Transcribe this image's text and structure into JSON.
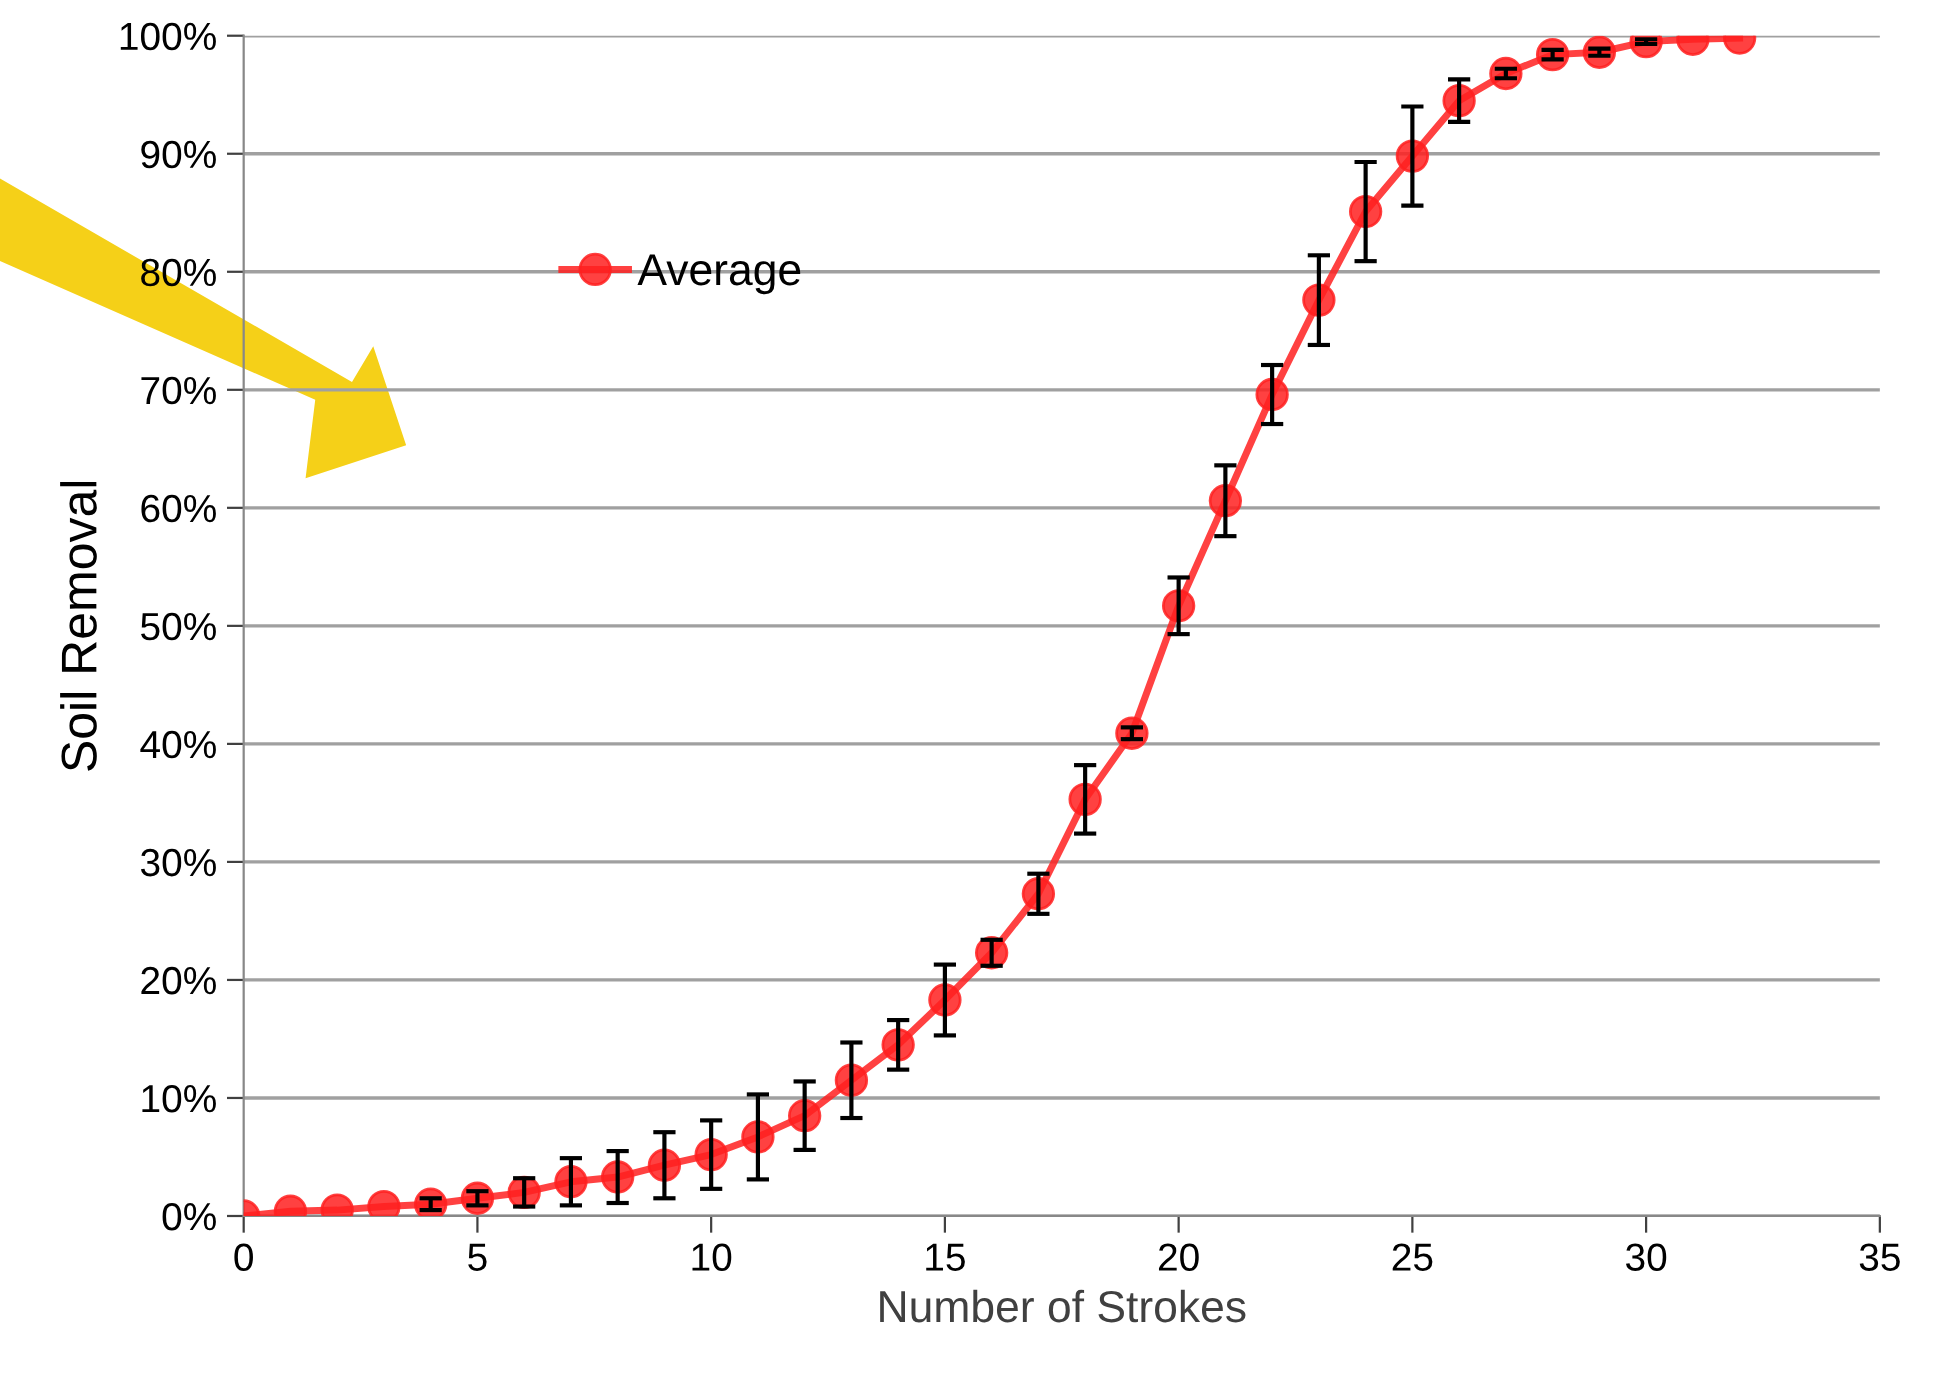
{
  "chart_data": {
    "type": "line",
    "xlabel": "Number of Strokes",
    "ylabel": "Soil Removal",
    "x": [
      0,
      1,
      2,
      3,
      4,
      5,
      6,
      7,
      8,
      9,
      10,
      11,
      12,
      13,
      14,
      15,
      16,
      17,
      18,
      19,
      20,
      21,
      22,
      23,
      24,
      25,
      26,
      27,
      28,
      29,
      30,
      31,
      32
    ],
    "series": [
      {
        "name": "Average",
        "color": "#ff2020",
        "values": [
          0,
          0.4,
          0.5,
          0.8,
          1.0,
          1.5,
          2.0,
          2.9,
          3.3,
          4.3,
          5.2,
          6.7,
          8.5,
          11.5,
          14.5,
          18.3,
          22.3,
          27.3,
          35.3,
          40.9,
          51.7,
          60.6,
          69.6,
          77.6,
          85.1,
          89.8,
          94.5,
          96.8,
          98.4,
          98.6,
          99.5,
          99.7,
          99.8
        ],
        "errors": [
          null,
          null,
          null,
          null,
          0.5,
          0.6,
          1.2,
          2.0,
          2.2,
          2.8,
          2.9,
          3.6,
          2.9,
          3.2,
          2.1,
          3.0,
          1.1,
          1.7,
          2.9,
          0.5,
          2.4,
          3.0,
          2.5,
          3.8,
          4.2,
          4.2,
          1.8,
          0.4,
          0.4,
          0.3,
          0.2,
          null,
          null
        ]
      }
    ],
    "xlim": [
      0,
      35
    ],
    "xticks": [
      0,
      5,
      10,
      15,
      20,
      25,
      30,
      35
    ],
    "ylim": [
      0,
      100
    ],
    "yticks": [
      {
        "value": 0,
        "label": "0%"
      },
      {
        "value": 10,
        "label": "10%"
      },
      {
        "value": 20,
        "label": "20%"
      },
      {
        "value": 30,
        "label": "30%"
      },
      {
        "value": 40,
        "label": "40%"
      },
      {
        "value": 50,
        "label": "50%"
      },
      {
        "value": 60,
        "label": "60%"
      },
      {
        "value": 70,
        "label": "70%"
      },
      {
        "value": 80,
        "label": "80%"
      },
      {
        "value": 90,
        "label": "90%"
      },
      {
        "value": 100,
        "label": "100%"
      }
    ],
    "grid": "y",
    "legend": "top left",
    "marker": "circle",
    "line_style": "solid"
  }
}
